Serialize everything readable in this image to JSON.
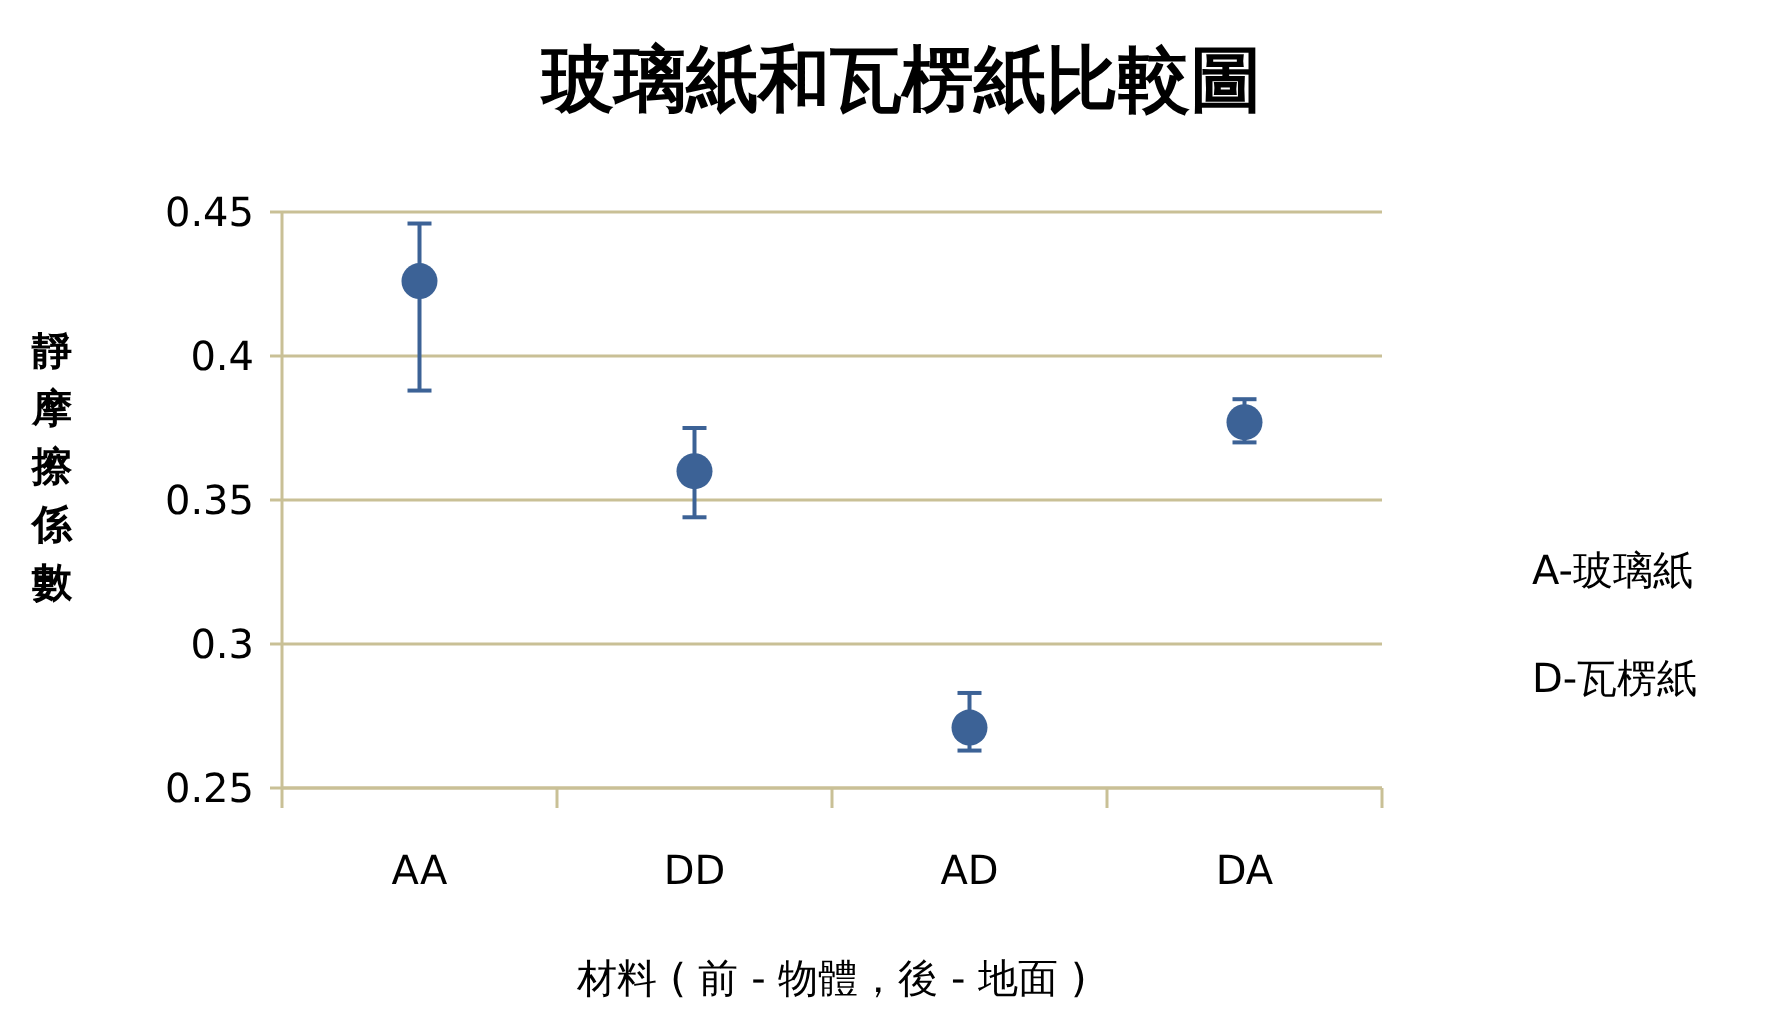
{
  "chart_data": {
    "type": "scatter",
    "title": "玻璃紙和瓦楞紙比較圖",
    "xlabel": "材料 ( 前 - 物體，後 - 地面 )",
    "ylabel": "靜摩擦係數",
    "categories": [
      "AA",
      "DD",
      "AD",
      "DA"
    ],
    "values": [
      0.426,
      0.36,
      0.271,
      0.377
    ],
    "errors": [
      [
        0.388,
        0.446
      ],
      [
        0.344,
        0.375
      ],
      [
        0.263,
        0.283
      ],
      [
        0.37,
        0.385
      ]
    ],
    "color": "#3c6296",
    "marker": "circle",
    "grid": "y",
    "ylim": [
      0.25,
      0.45
    ],
    "yticks": [
      0.25,
      0.3,
      0.35,
      0.4,
      0.45
    ],
    "annotations": [
      "A-玻璃紙",
      "D-瓦楞紙"
    ]
  }
}
